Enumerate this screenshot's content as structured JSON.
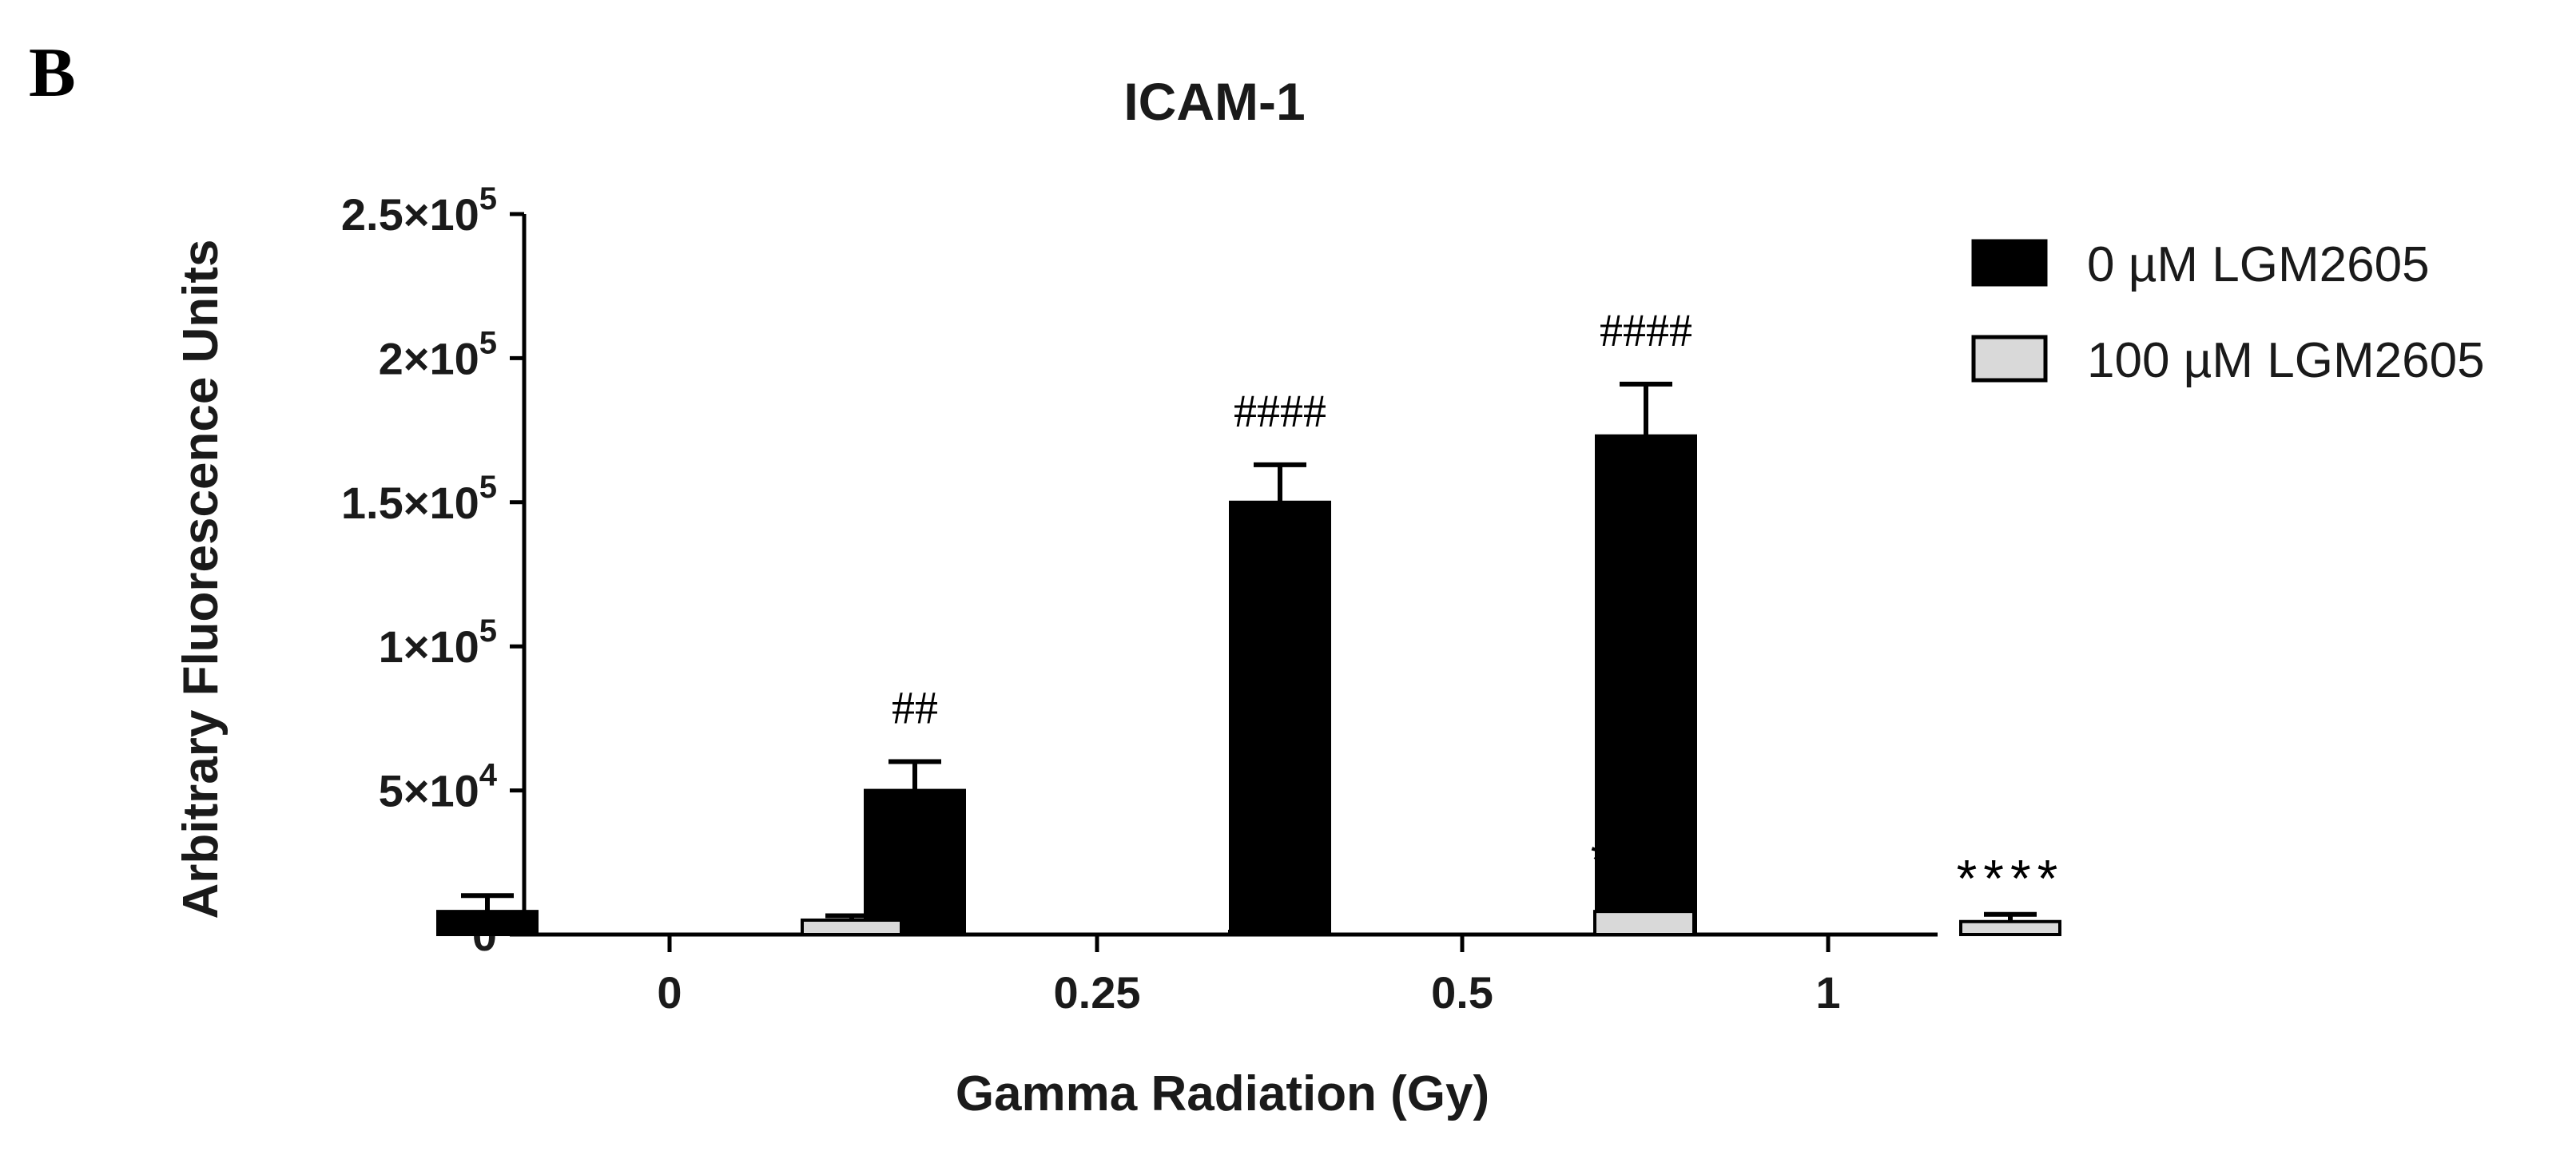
{
  "panel_label": "B",
  "chart_data": {
    "type": "bar",
    "title": "ICAM-1",
    "xlabel": "Gamma Radiation (Gy)",
    "ylabel": "Arbitrary Fluorescence Units",
    "categories": [
      "0",
      "0.25",
      "0.5",
      "1"
    ],
    "ylim": [
      0,
      250000
    ],
    "yticks": [
      {
        "value": 0,
        "mantissa": "0",
        "exp": ""
      },
      {
        "value": 50000,
        "mantissa": "5×10",
        "exp": "4"
      },
      {
        "value": 100000,
        "mantissa": "1×10",
        "exp": "5"
      },
      {
        "value": 150000,
        "mantissa": "1.5×10",
        "exp": "5"
      },
      {
        "value": 200000,
        "mantissa": "2×10",
        "exp": "5"
      },
      {
        "value": 250000,
        "mantissa": "2.5×10",
        "exp": "5"
      }
    ],
    "series": [
      {
        "name": "0 µM LGM2605",
        "color": "#000000",
        "values": [
          8000,
          50000,
          150000,
          173000
        ],
        "errors": [
          5500,
          10000,
          13000,
          18000
        ],
        "annotations": [
          "",
          "##",
          "####",
          "####"
        ]
      },
      {
        "name": "100 µM LGM2605",
        "color": "#d9d9d9",
        "values": [
          5000,
          1000,
          8000,
          4500
        ],
        "errors": [
          1500,
          2000,
          5500,
          2500
        ],
        "annotations": [
          "",
          "**",
          "****",
          "****"
        ]
      }
    ],
    "legend_position": "top-right",
    "grid": false
  }
}
